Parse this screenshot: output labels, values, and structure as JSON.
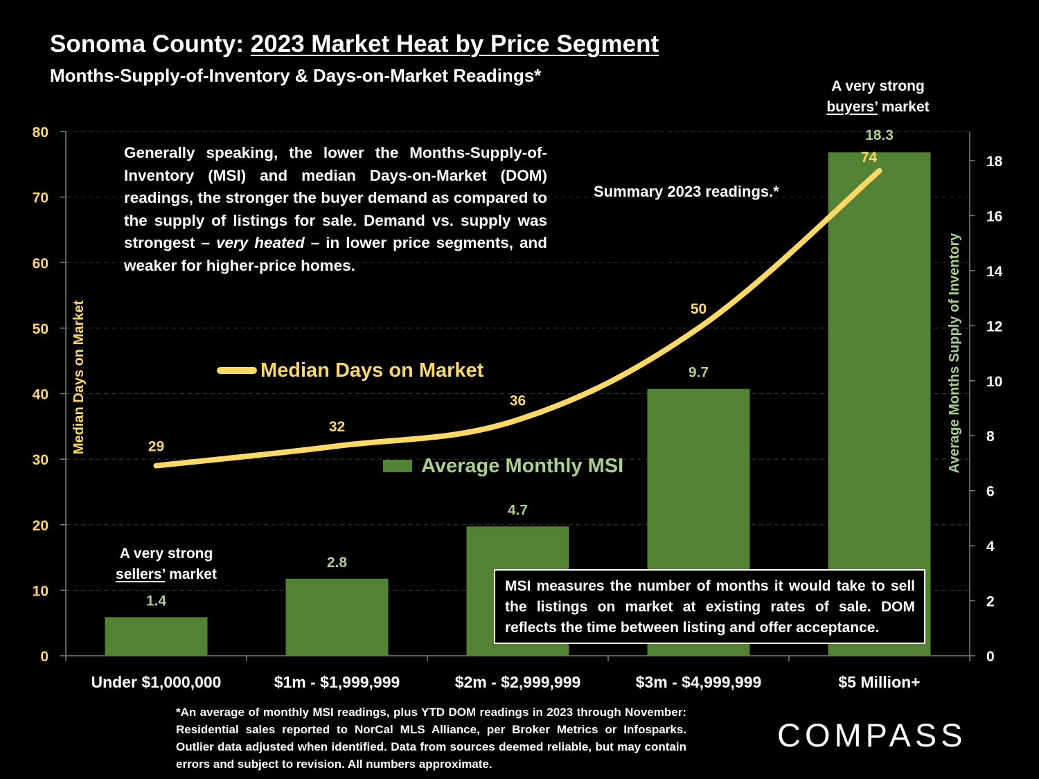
{
  "title": {
    "prefix": "Sonoma County: ",
    "main": "2023 Market Heat by Price Segment",
    "subtitle": "Months-Supply-of-Inventory & Days-on-Market Readings*"
  },
  "description": {
    "part1": "Generally speaking, the lower the Months-Supply-of-Inventory (MSI) and median Days-on-Market (DOM) readings, the stronger the buyer demand as compared to the supply of listings for sale. Demand vs. supply was strongest – ",
    "italic": "very heated",
    "part2": " – in lower price segments, and weaker for higher-price homes."
  },
  "summary_label": "Summary 2023 readings.*",
  "annotations": {
    "sellers": {
      "line1": "A very strong",
      "underlined": "sellers’",
      "rest": " market"
    },
    "buyers": {
      "line1": "A very strong",
      "underlined": "buyers’",
      "rest": " market"
    }
  },
  "msi_note": "MSI measures the number of months it would take to sell the listings on market at existing rates of sale. DOM reflects the time between listing and offer acceptance.",
  "footnote": "*An average of monthly MSI readings, plus YTD DOM readings in 2023 through November: Residential sales reported to NorCal MLS Alliance, per Broker Metrics or Infosparks. Outlier data adjusted when identified. Data from sources deemed reliable, but may contain errors and subject to revision. All numbers approximate.",
  "logo": "COMPASS",
  "colors": {
    "bar": "#548235",
    "line": "#FFD966",
    "msi_label": "#A9D18E",
    "background": "#000000"
  },
  "chart_data": {
    "type": "bar+line",
    "categories": [
      "Under $1,000,000",
      "$1m - $1,999,999",
      "$2m - $2,999,999",
      "$3m - $4,999,999",
      "$5 Million+"
    ],
    "series": [
      {
        "name": "Average Monthly MSI",
        "kind": "bar",
        "axis": "right",
        "values": [
          1.4,
          2.8,
          4.7,
          9.7,
          18.3
        ],
        "labels": [
          "1.4",
          "2.8",
          "4.7",
          "9.7",
          "18.3"
        ]
      },
      {
        "name": "Median Days on Market",
        "kind": "line",
        "axis": "left",
        "values": [
          29,
          32,
          36,
          50,
          74
        ],
        "labels": [
          "29",
          "32",
          "36",
          "50",
          "74"
        ]
      }
    ],
    "y_left": {
      "label": "Median Days on Market",
      "lim": [
        0,
        80
      ],
      "ticks": [
        0,
        10,
        20,
        30,
        40,
        50,
        60,
        70,
        80
      ]
    },
    "y_right": {
      "label": "Average Months Supply of Inventory",
      "lim": [
        0,
        19
      ],
      "ticks": [
        0,
        2,
        4,
        6,
        8,
        10,
        12,
        14,
        16,
        18
      ]
    },
    "grid": true
  }
}
